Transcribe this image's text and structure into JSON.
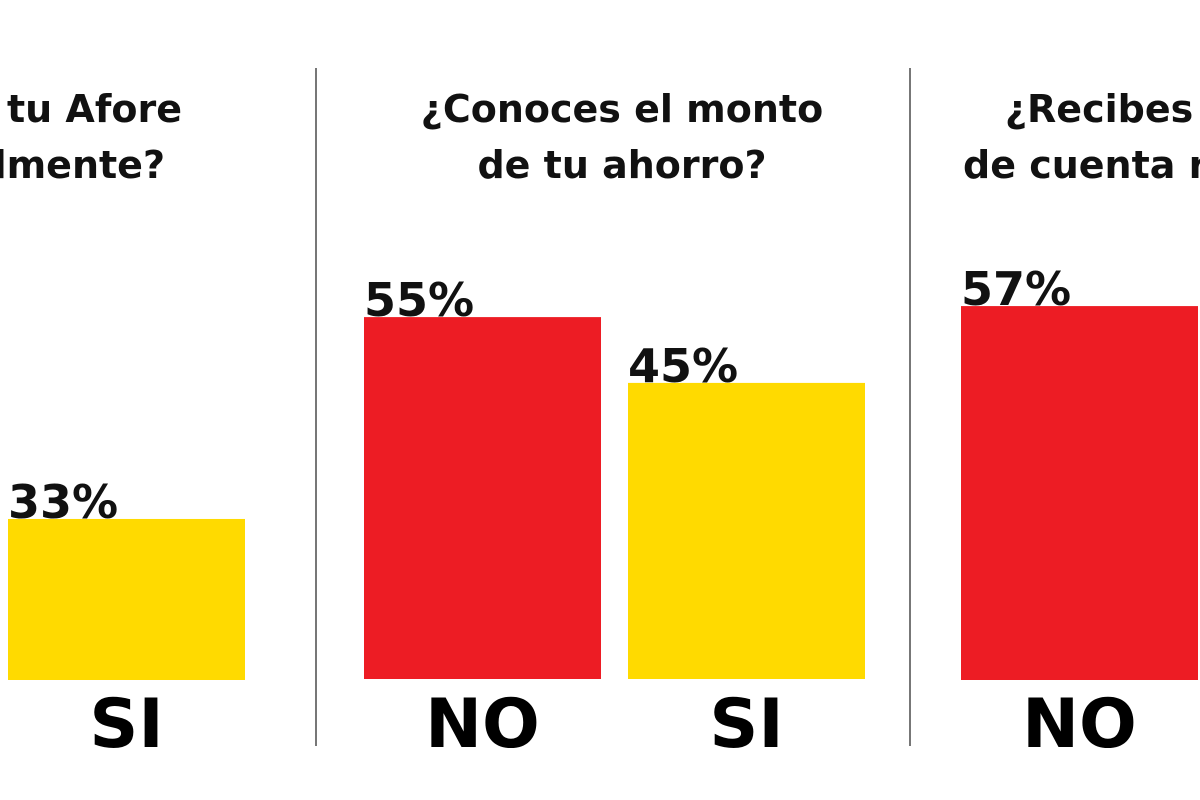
{
  "chart_data": [
    {
      "type": "bar",
      "title_lines": [
        "e tu Afore",
        "lmente?"
      ],
      "categories": [
        "SI"
      ],
      "values": [
        33
      ],
      "unit": "%",
      "colors": [
        "#FFDA00"
      ]
    },
    {
      "type": "bar",
      "title_lines": [
        "¿Conoces el monto",
        "de tu ahorro?"
      ],
      "categories": [
        "NO",
        "SI"
      ],
      "values": [
        55,
        45
      ],
      "unit": "%",
      "colors": [
        "#ED1C24",
        "#FFDA00"
      ]
    },
    {
      "type": "bar",
      "title_lines": [
        "¿Recibes t",
        "de cuenta re"
      ],
      "categories": [
        "NO"
      ],
      "values": [
        57
      ],
      "unit": "%",
      "colors": [
        "#ED1C24"
      ]
    }
  ],
  "colors": {
    "no": "#ED1C24",
    "si": "#FFDA00",
    "divider": "#777777"
  }
}
